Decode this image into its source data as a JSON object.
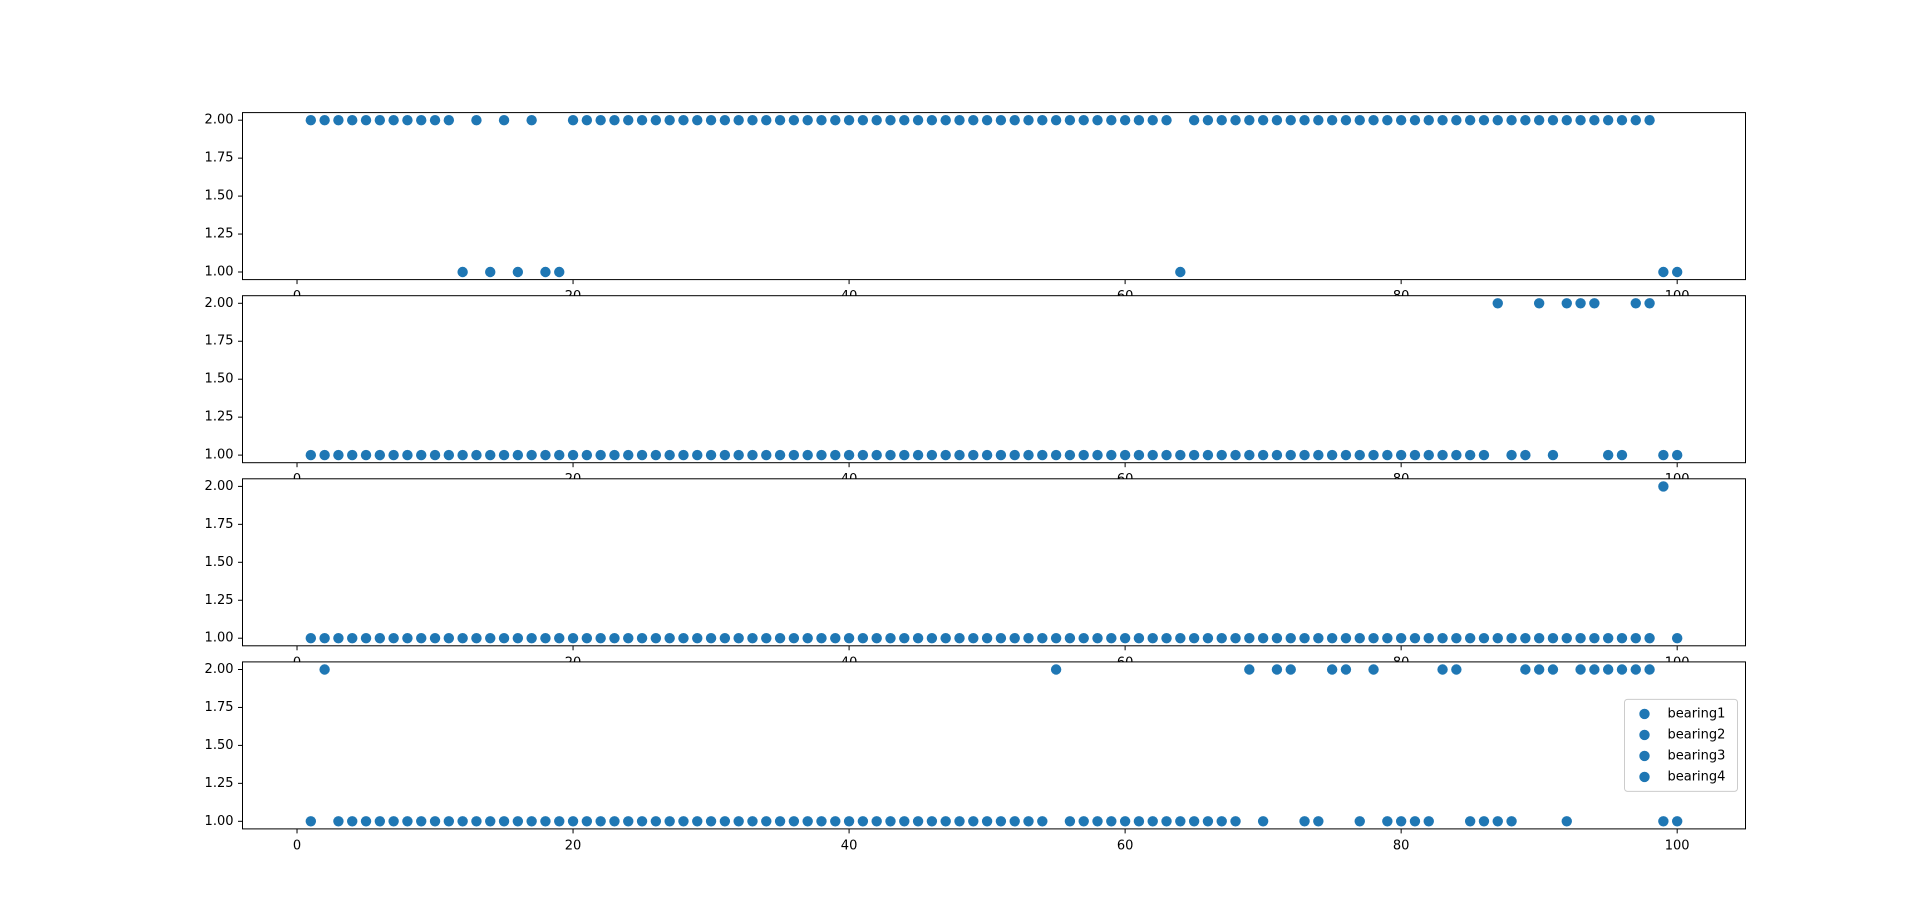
{
  "chart_data": [
    {
      "type": "scatter",
      "x": [
        1,
        2,
        3,
        4,
        5,
        6,
        7,
        8,
        9,
        10,
        11,
        12,
        13,
        14,
        15,
        16,
        17,
        18,
        19,
        20,
        21,
        22,
        23,
        24,
        25,
        26,
        27,
        28,
        29,
        30,
        31,
        32,
        33,
        34,
        35,
        36,
        37,
        38,
        39,
        40,
        41,
        42,
        43,
        44,
        45,
        46,
        47,
        48,
        49,
        50,
        51,
        52,
        53,
        54,
        55,
        56,
        57,
        58,
        59,
        60,
        61,
        62,
        63,
        64,
        65,
        66,
        67,
        68,
        69,
        70,
        71,
        72,
        73,
        74,
        75,
        76,
        77,
        78,
        79,
        80,
        81,
        82,
        83,
        84,
        85,
        86,
        87,
        88,
        89,
        90,
        91,
        92,
        93,
        94,
        95,
        96,
        97,
        98,
        99,
        100
      ],
      "series": [
        {
          "name": "bearing1",
          "color": "#1f77b4",
          "values": [
            2,
            2,
            2,
            2,
            2,
            2,
            2,
            2,
            2,
            2,
            2,
            1,
            2,
            1,
            2,
            1,
            2,
            1,
            1,
            2,
            2,
            2,
            2,
            2,
            2,
            2,
            2,
            2,
            2,
            2,
            2,
            2,
            2,
            2,
            2,
            2,
            2,
            2,
            2,
            2,
            2,
            2,
            2,
            2,
            2,
            2,
            2,
            2,
            2,
            2,
            2,
            2,
            2,
            2,
            2,
            2,
            2,
            2,
            2,
            2,
            2,
            2,
            2,
            1,
            2,
            2,
            2,
            2,
            2,
            2,
            2,
            2,
            2,
            2,
            2,
            2,
            2,
            2,
            2,
            2,
            2,
            2,
            2,
            2,
            2,
            2,
            2,
            2,
            2,
            2,
            2,
            2,
            2,
            2,
            2,
            2,
            2,
            2,
            1,
            1
          ]
        }
      ],
      "xlim": [
        -3.95,
        104.95
      ],
      "ylim": [
        0.95,
        2.05
      ],
      "xticks": [
        0,
        20,
        40,
        60,
        80,
        100
      ],
      "yticks": [
        {
          "value": 1,
          "label": "1.00"
        },
        {
          "value": 1.25,
          "label": "1.25"
        },
        {
          "value": 1.5,
          "label": "1.50"
        },
        {
          "value": 1.75,
          "label": "1.75"
        },
        {
          "value": 2,
          "label": "2.00"
        }
      ]
    },
    {
      "type": "scatter",
      "x": [
        1,
        2,
        3,
        4,
        5,
        6,
        7,
        8,
        9,
        10,
        11,
        12,
        13,
        14,
        15,
        16,
        17,
        18,
        19,
        20,
        21,
        22,
        23,
        24,
        25,
        26,
        27,
        28,
        29,
        30,
        31,
        32,
        33,
        34,
        35,
        36,
        37,
        38,
        39,
        40,
        41,
        42,
        43,
        44,
        45,
        46,
        47,
        48,
        49,
        50,
        51,
        52,
        53,
        54,
        55,
        56,
        57,
        58,
        59,
        60,
        61,
        62,
        63,
        64,
        65,
        66,
        67,
        68,
        69,
        70,
        71,
        72,
        73,
        74,
        75,
        76,
        77,
        78,
        79,
        80,
        81,
        82,
        83,
        84,
        85,
        86,
        87,
        88,
        89,
        90,
        91,
        92,
        93,
        94,
        95,
        96,
        97,
        98,
        99,
        100
      ],
      "series": [
        {
          "name": "bearing2",
          "color": "#1f77b4",
          "values": [
            1,
            1,
            1,
            1,
            1,
            1,
            1,
            1,
            1,
            1,
            1,
            1,
            1,
            1,
            1,
            1,
            1,
            1,
            1,
            1,
            1,
            1,
            1,
            1,
            1,
            1,
            1,
            1,
            1,
            1,
            1,
            1,
            1,
            1,
            1,
            1,
            1,
            1,
            1,
            1,
            1,
            1,
            1,
            1,
            1,
            1,
            1,
            1,
            1,
            1,
            1,
            1,
            1,
            1,
            1,
            1,
            1,
            1,
            1,
            1,
            1,
            1,
            1,
            1,
            1,
            1,
            1,
            1,
            1,
            1,
            1,
            1,
            1,
            1,
            1,
            1,
            1,
            1,
            1,
            1,
            1,
            1,
            1,
            1,
            1,
            1,
            2,
            1,
            1,
            2,
            1,
            2,
            2,
            2,
            1,
            1,
            2,
            2,
            1,
            1
          ]
        }
      ],
      "xlim": [
        -3.95,
        104.95
      ],
      "ylim": [
        0.95,
        2.05
      ],
      "xticks": [
        0,
        20,
        40,
        60,
        80,
        100
      ],
      "yticks": [
        {
          "value": 1,
          "label": "1.00"
        },
        {
          "value": 1.25,
          "label": "1.25"
        },
        {
          "value": 1.5,
          "label": "1.50"
        },
        {
          "value": 1.75,
          "label": "1.75"
        },
        {
          "value": 2,
          "label": "2.00"
        }
      ]
    },
    {
      "type": "scatter",
      "x": [
        1,
        2,
        3,
        4,
        5,
        6,
        7,
        8,
        9,
        10,
        11,
        12,
        13,
        14,
        15,
        16,
        17,
        18,
        19,
        20,
        21,
        22,
        23,
        24,
        25,
        26,
        27,
        28,
        29,
        30,
        31,
        32,
        33,
        34,
        35,
        36,
        37,
        38,
        39,
        40,
        41,
        42,
        43,
        44,
        45,
        46,
        47,
        48,
        49,
        50,
        51,
        52,
        53,
        54,
        55,
        56,
        57,
        58,
        59,
        60,
        61,
        62,
        63,
        64,
        65,
        66,
        67,
        68,
        69,
        70,
        71,
        72,
        73,
        74,
        75,
        76,
        77,
        78,
        79,
        80,
        81,
        82,
        83,
        84,
        85,
        86,
        87,
        88,
        89,
        90,
        91,
        92,
        93,
        94,
        95,
        96,
        97,
        98,
        99,
        100
      ],
      "series": [
        {
          "name": "bearing3",
          "color": "#1f77b4",
          "values": [
            1,
            1,
            1,
            1,
            1,
            1,
            1,
            1,
            1,
            1,
            1,
            1,
            1,
            1,
            1,
            1,
            1,
            1,
            1,
            1,
            1,
            1,
            1,
            1,
            1,
            1,
            1,
            1,
            1,
            1,
            1,
            1,
            1,
            1,
            1,
            1,
            1,
            1,
            1,
            1,
            1,
            1,
            1,
            1,
            1,
            1,
            1,
            1,
            1,
            1,
            1,
            1,
            1,
            1,
            1,
            1,
            1,
            1,
            1,
            1,
            1,
            1,
            1,
            1,
            1,
            1,
            1,
            1,
            1,
            1,
            1,
            1,
            1,
            1,
            1,
            1,
            1,
            1,
            1,
            1,
            1,
            1,
            1,
            1,
            1,
            1,
            1,
            1,
            1,
            1,
            1,
            1,
            1,
            1,
            1,
            1,
            1,
            1,
            2,
            1
          ]
        }
      ],
      "xlim": [
        -3.95,
        104.95
      ],
      "ylim": [
        0.95,
        2.05
      ],
      "xticks": [
        0,
        20,
        40,
        60,
        80,
        100
      ],
      "yticks": [
        {
          "value": 1,
          "label": "1.00"
        },
        {
          "value": 1.25,
          "label": "1.25"
        },
        {
          "value": 1.5,
          "label": "1.50"
        },
        {
          "value": 1.75,
          "label": "1.75"
        },
        {
          "value": 2,
          "label": "2.00"
        }
      ]
    },
    {
      "type": "scatter",
      "x": [
        1,
        2,
        3,
        4,
        5,
        6,
        7,
        8,
        9,
        10,
        11,
        12,
        13,
        14,
        15,
        16,
        17,
        18,
        19,
        20,
        21,
        22,
        23,
        24,
        25,
        26,
        27,
        28,
        29,
        30,
        31,
        32,
        33,
        34,
        35,
        36,
        37,
        38,
        39,
        40,
        41,
        42,
        43,
        44,
        45,
        46,
        47,
        48,
        49,
        50,
        51,
        52,
        53,
        54,
        55,
        56,
        57,
        58,
        59,
        60,
        61,
        62,
        63,
        64,
        65,
        66,
        67,
        68,
        69,
        70,
        71,
        72,
        73,
        74,
        75,
        76,
        77,
        78,
        79,
        80,
        81,
        82,
        83,
        84,
        85,
        86,
        87,
        88,
        89,
        90,
        91,
        92,
        93,
        94,
        95,
        96,
        97,
        98,
        99,
        100
      ],
      "series": [
        {
          "name": "bearing4",
          "color": "#1f77b4",
          "values": [
            1,
            2,
            1,
            1,
            1,
            1,
            1,
            1,
            1,
            1,
            1,
            1,
            1,
            1,
            1,
            1,
            1,
            1,
            1,
            1,
            1,
            1,
            1,
            1,
            1,
            1,
            1,
            1,
            1,
            1,
            1,
            1,
            1,
            1,
            1,
            1,
            1,
            1,
            1,
            1,
            1,
            1,
            1,
            1,
            1,
            1,
            1,
            1,
            1,
            1,
            1,
            1,
            1,
            1,
            2,
            1,
            1,
            1,
            1,
            1,
            1,
            1,
            1,
            1,
            1,
            1,
            1,
            1,
            2,
            1,
            2,
            2,
            1,
            1,
            2,
            2,
            1,
            2,
            1,
            1,
            1,
            1,
            2,
            2,
            1,
            1,
            1,
            1,
            2,
            2,
            2,
            1,
            2,
            2,
            2,
            2,
            2,
            2,
            1,
            1
          ]
        }
      ],
      "xlim": [
        -3.95,
        104.95
      ],
      "ylim": [
        0.95,
        2.05
      ],
      "xticks": [
        0,
        20,
        40,
        60,
        80,
        100
      ],
      "yticks": [
        {
          "value": 1,
          "label": "1.00"
        },
        {
          "value": 1.25,
          "label": "1.25"
        },
        {
          "value": 1.5,
          "label": "1.50"
        },
        {
          "value": 1.75,
          "label": "1.75"
        },
        {
          "value": 2,
          "label": "2.00"
        }
      ],
      "legend": "center right"
    }
  ]
}
